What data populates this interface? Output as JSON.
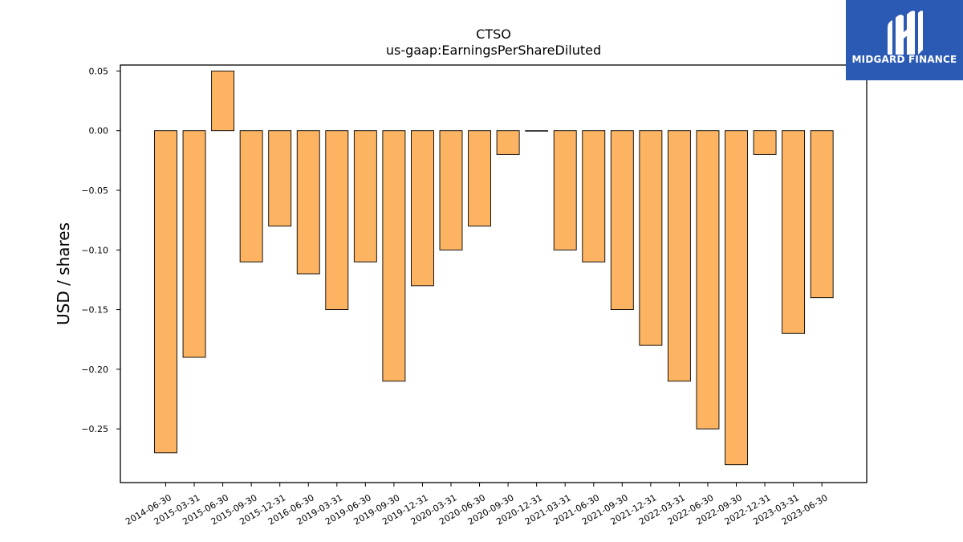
{
  "chart_data": {
    "type": "bar",
    "title": "CTSO",
    "subtitle": "us-gaap:EarningsPerShareDiluted",
    "xlabel": "",
    "ylabel": "USD / shares",
    "categories": [
      "2014-06-30",
      "2015-03-31",
      "2015-06-30",
      "2015-09-30",
      "2015-12-31",
      "2016-06-30",
      "2019-03-31",
      "2019-06-30",
      "2019-09-30",
      "2019-12-31",
      "2020-03-31",
      "2020-06-30",
      "2020-09-30",
      "2020-12-31",
      "2021-03-31",
      "2021-06-30",
      "2021-09-30",
      "2021-12-31",
      "2022-03-31",
      "2022-06-30",
      "2022-09-30",
      "2022-12-31",
      "2023-03-31",
      "2023-06-30"
    ],
    "values": [
      -0.27,
      -0.19,
      0.05,
      -0.11,
      -0.08,
      -0.12,
      -0.15,
      -0.11,
      -0.21,
      -0.13,
      -0.1,
      -0.08,
      -0.02,
      0.0,
      -0.1,
      -0.11,
      -0.15,
      -0.18,
      -0.21,
      -0.25,
      -0.28,
      -0.02,
      -0.17,
      -0.14
    ],
    "ylim": [
      -0.295,
      0.055
    ],
    "yticks": [
      0.05,
      0.0,
      -0.05,
      -0.1,
      -0.15,
      -0.2,
      -0.25
    ],
    "ytick_labels": [
      "0.05",
      "0.00",
      "−0.05",
      "−0.10",
      "−0.15",
      "−0.20",
      "−0.25"
    ],
    "grid": false,
    "bar_color": "#fdb462",
    "edge_color": "#000000"
  },
  "logo": {
    "text": "MIDGARD FINANCE",
    "background": "#2a5ab3"
  }
}
